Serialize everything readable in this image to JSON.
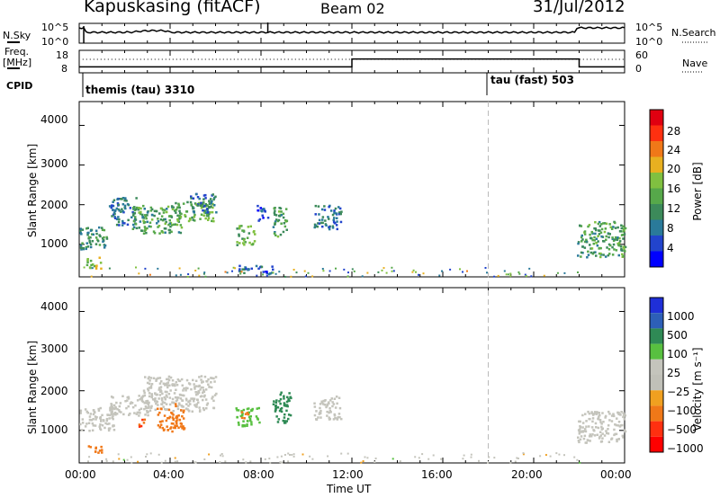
{
  "header": {
    "station": "Kapuskasing (fitACF)",
    "beam": "Beam 02",
    "date": "31/Jul/2012"
  },
  "noise_panel": {
    "left_label": "N.Sky",
    "left_ticks": [
      "10^5",
      "10^0"
    ],
    "right_label": "N.Search",
    "right_ticks": [
      "10^5",
      "10^0"
    ]
  },
  "freq_panel": {
    "left_label_top": "Freq.",
    "left_label_bottom": "[MHz]",
    "left_ticks": [
      "18",
      "8"
    ],
    "right_label": "Nave",
    "right_ticks": [
      "60",
      "0"
    ]
  },
  "cpid_panel": {
    "label": "CPID",
    "modes": [
      {
        "name": "themis (tau) 3310",
        "start_hour": 0
      },
      {
        "name": "tau (fast) 503",
        "start_hour": 18
      }
    ]
  },
  "power_panel": {
    "ylabel": "Slant Range [km]",
    "colorbar_label": "Power [dB]",
    "colorbar_ticks": [
      "28",
      "24",
      "20",
      "16",
      "12",
      "8",
      "4"
    ],
    "colors": [
      "#0000ff",
      "#2244cc",
      "#2a7a9a",
      "#3c8a5a",
      "#56a84a",
      "#80c040",
      "#e8b020",
      "#f07818",
      "#ff3010",
      "#e00010"
    ]
  },
  "velocity_panel": {
    "ylabel": "Slant Range [km]",
    "colorbar_label": "Velocity [m s⁻¹]",
    "colorbar_ticks": [
      "1000",
      "500",
      "100",
      "25",
      "−25",
      "−100",
      "−500",
      "−1000"
    ],
    "colors": [
      "#1f2fd8",
      "#2d5fb8",
      "#2f8a55",
      "#58c040",
      "#c4c4bc",
      "#c0c0b8",
      "#f0a020",
      "#f07818",
      "#ff3010",
      "#ff0000"
    ]
  },
  "axes": {
    "y_ticks": [
      "4000",
      "3000",
      "2000",
      "1000"
    ],
    "x_ticks": [
      "00:00",
      "04:00",
      "08:00",
      "12:00",
      "16:00",
      "20:00",
      "00:00"
    ],
    "xlabel": "Time UT"
  },
  "chart_data": {
    "type": "heatmap",
    "title": "Kapuskasing (fitACF)",
    "subtitle": "Beam 02",
    "date": "31/Jul/2012",
    "xlabel": "Time UT",
    "ylabel": "Slant Range [km]",
    "xlim_hours": [
      0,
      24
    ],
    "ylim_km": [
      180,
      4600
    ],
    "marker_line_hour": 18,
    "frequency_mhz": [
      {
        "start_hour": 0,
        "end_hour": 12,
        "value": 11
      },
      {
        "start_hour": 12,
        "end_hour": 22,
        "value": 15
      },
      {
        "start_hour": 22,
        "end_hour": 24,
        "value": 11
      }
    ],
    "power_patches": [
      {
        "start_hour": 0.0,
        "end_hour": 1.2,
        "min_km": 900,
        "max_km": 1500,
        "dB": 10
      },
      {
        "start_hour": 1.3,
        "end_hour": 2.5,
        "min_km": 1500,
        "max_km": 2200,
        "dB": 8
      },
      {
        "start_hour": 2.3,
        "end_hour": 4.5,
        "min_km": 1300,
        "max_km": 2000,
        "dB": 12
      },
      {
        "start_hour": 4.0,
        "end_hour": 5.9,
        "min_km": 1600,
        "max_km": 2100,
        "dB": 14
      },
      {
        "start_hour": 4.8,
        "end_hour": 6.0,
        "min_km": 1800,
        "max_km": 2300,
        "dB": 8
      },
      {
        "start_hour": 6.9,
        "end_hour": 7.7,
        "min_km": 1000,
        "max_km": 1500,
        "dB": 14
      },
      {
        "start_hour": 7.8,
        "end_hour": 8.3,
        "min_km": 1600,
        "max_km": 2000,
        "dB": 6
      },
      {
        "start_hour": 8.5,
        "end_hour": 9.1,
        "min_km": 1200,
        "max_km": 2000,
        "dB": 12
      },
      {
        "start_hour": 10.3,
        "end_hour": 11.5,
        "min_km": 1400,
        "max_km": 2000,
        "dB": 8
      },
      {
        "start_hour": 0.3,
        "end_hour": 1.0,
        "min_km": 400,
        "max_km": 700,
        "dB": 16
      },
      {
        "start_hour": 7.0,
        "end_hour": 8.5,
        "min_km": 250,
        "max_km": 500,
        "dB": 6
      },
      {
        "start_hour": 21.9,
        "end_hour": 24.0,
        "min_km": 700,
        "max_km": 1600,
        "dB": 12
      }
    ],
    "velocity_patches": [
      {
        "start_hour": 0.0,
        "end_hour": 1.5,
        "min_km": 1000,
        "max_km": 1600,
        "ms": 0
      },
      {
        "start_hour": 1.3,
        "end_hour": 3.2,
        "min_km": 1400,
        "max_km": 1900,
        "ms": 0
      },
      {
        "start_hour": 2.8,
        "end_hour": 6.0,
        "min_km": 1500,
        "max_km": 2400,
        "ms": 0
      },
      {
        "start_hour": 3.4,
        "end_hour": 4.6,
        "min_km": 1000,
        "max_km": 1700,
        "ms": -150
      },
      {
        "start_hour": 2.6,
        "end_hour": 2.9,
        "min_km": 1100,
        "max_km": 1300,
        "ms": -300
      },
      {
        "start_hour": 6.8,
        "end_hour": 7.9,
        "min_km": 1100,
        "max_km": 1600,
        "ms": 60
      },
      {
        "start_hour": 7.0,
        "end_hour": 7.4,
        "min_km": 1300,
        "max_km": 1500,
        "ms": -120
      },
      {
        "start_hour": 8.5,
        "end_hour": 9.3,
        "min_km": 1200,
        "max_km": 2000,
        "ms": 200
      },
      {
        "start_hour": 10.3,
        "end_hour": 11.5,
        "min_km": 1300,
        "max_km": 1900,
        "ms": 0
      },
      {
        "start_hour": 0.3,
        "end_hour": 1.0,
        "min_km": 450,
        "max_km": 650,
        "ms": -200
      },
      {
        "start_hour": 21.9,
        "end_hour": 24.0,
        "min_km": 700,
        "max_km": 1500,
        "ms": 0
      }
    ]
  }
}
